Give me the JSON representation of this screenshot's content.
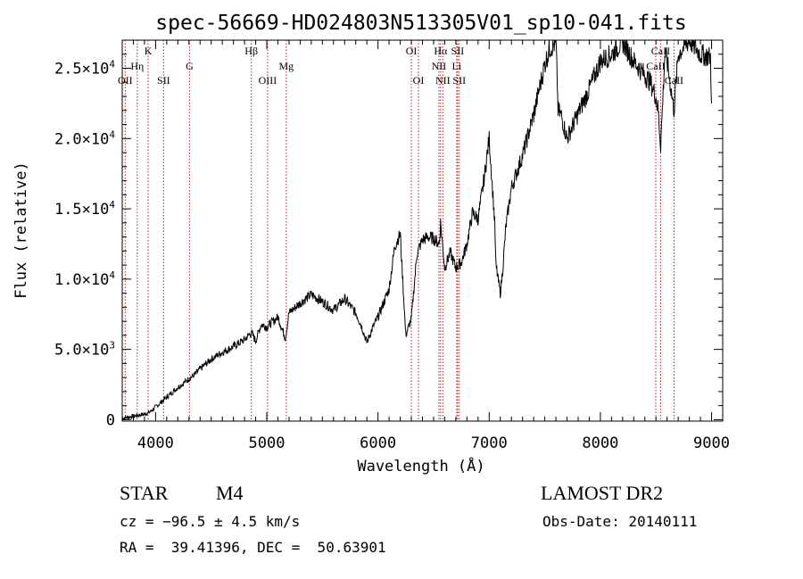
{
  "chart_data": {
    "type": "line",
    "title": "spec-56669-HD024803N513305V01_sp10-041.fits",
    "xlabel": "Wavelength (Å)",
    "ylabel": "Flux (relative)",
    "xlim": [
      3700,
      9100
    ],
    "ylim": [
      -100,
      27000
    ],
    "xticks": [
      {
        "v": 4000,
        "label": "4000"
      },
      {
        "v": 5000,
        "label": "5000"
      },
      {
        "v": 6000,
        "label": "6000"
      },
      {
        "v": 7000,
        "label": "7000"
      },
      {
        "v": 8000,
        "label": "8000"
      },
      {
        "v": 9000,
        "label": "9000"
      }
    ],
    "yticks": [
      {
        "v": 0,
        "label": "0"
      },
      {
        "v": 5000,
        "label": "5.0×10",
        "exp": "3"
      },
      {
        "v": 10000,
        "label": "1.0×10",
        "exp": "4"
      },
      {
        "v": 15000,
        "label": "1.5×10",
        "exp": "4"
      },
      {
        "v": 20000,
        "label": "2.0×10",
        "exp": "4"
      },
      {
        "v": 25000,
        "label": "2.5×10",
        "exp": "4"
      }
    ],
    "grid": false,
    "series": [
      {
        "x": [
          3700,
          3800,
          3900,
          3950,
          4000,
          4100,
          4200,
          4300,
          4350,
          4400,
          4500,
          4600,
          4700,
          4800,
          4861,
          4900,
          4950,
          5000,
          5100,
          5167,
          5200,
          5300,
          5400,
          5500,
          5600,
          5700,
          5800,
          5850,
          5900,
          5950,
          6000,
          6050,
          6100,
          6150,
          6170,
          6200,
          6250,
          6300,
          6350,
          6400,
          6450,
          6500,
          6550,
          6563,
          6600,
          6650,
          6700,
          6750,
          6800,
          6850,
          6900,
          6950,
          7000,
          7050,
          7060,
          7100,
          7120,
          7150,
          7200,
          7300,
          7400,
          7500,
          7550,
          7600,
          7620,
          7650,
          7700,
          7800,
          7900,
          8000,
          8100,
          8200,
          8300,
          8400,
          8450,
          8498,
          8520,
          8542,
          8580,
          8600,
          8662,
          8700,
          8800,
          8900,
          8990,
          9000
        ],
        "y": [
          100,
          250,
          400,
          550,
          900,
          1600,
          2300,
          2900,
          3200,
          3600,
          4300,
          4800,
          5200,
          5700,
          6200,
          5600,
          6800,
          6600,
          7300,
          5800,
          7600,
          8300,
          8900,
          8400,
          7800,
          8600,
          7600,
          6700,
          5500,
          6500,
          7300,
          8300,
          9300,
          12300,
          12700,
          13200,
          6000,
          7200,
          11800,
          12800,
          13000,
          12900,
          12500,
          14000,
          10800,
          11900,
          10800,
          11200,
          12500,
          14700,
          14300,
          16900,
          20000,
          14000,
          11000,
          9000,
          10500,
          13700,
          16500,
          18800,
          21700,
          25300,
          26500,
          26800,
          22000,
          21600,
          20000,
          21800,
          23500,
          25500,
          26000,
          26900,
          25500,
          24500,
          24000,
          23000,
          22000,
          19500,
          26000,
          25500,
          22000,
          26000,
          27000,
          26000,
          25800,
          22500
        ]
      }
    ],
    "lines": [
      {
        "v": 3727,
        "label": "OII",
        "row": 3
      },
      {
        "v": 3835,
        "label": "Hη",
        "row": 2
      },
      {
        "v": 3933,
        "label": "K",
        "row": 1
      },
      {
        "v": 4072,
        "label": "SII",
        "row": 3
      },
      {
        "v": 4305,
        "label": "G",
        "row": 2
      },
      {
        "v": 4861,
        "label": "Hβ",
        "row": 1
      },
      {
        "v": 5007,
        "label": "OIII",
        "row": 3
      },
      {
        "v": 5175,
        "label": "Mg",
        "row": 2
      },
      {
        "v": 6300,
        "label": "OI",
        "row": 1
      },
      {
        "v": 6364,
        "label": "OI",
        "row": 3
      },
      {
        "v": 6548,
        "label": "NII",
        "row": 2
      },
      {
        "v": 6563,
        "label": "Hα",
        "row": 1
      },
      {
        "v": 6583,
        "label": "NII",
        "row": 3
      },
      {
        "v": 6708,
        "label": "Li",
        "row": 2
      },
      {
        "v": 6716,
        "label": "SII",
        "row": 1
      },
      {
        "v": 6731,
        "label": "SII",
        "row": 3
      },
      {
        "v": 8498,
        "label": "CaII",
        "row": 2
      },
      {
        "v": 8542,
        "label": "CaII",
        "row": 1
      },
      {
        "v": 8662,
        "label": "CaII",
        "row": 3
      }
    ]
  },
  "info": {
    "class_label": "STAR",
    "subclass": "M4",
    "cz": "cz = −96.5 ± 4.5 km/s",
    "radec": "RA =  39.41396, DEC =  50.63901",
    "survey": "LAMOST DR2",
    "obs_date": "Obs-Date: 20140111"
  }
}
